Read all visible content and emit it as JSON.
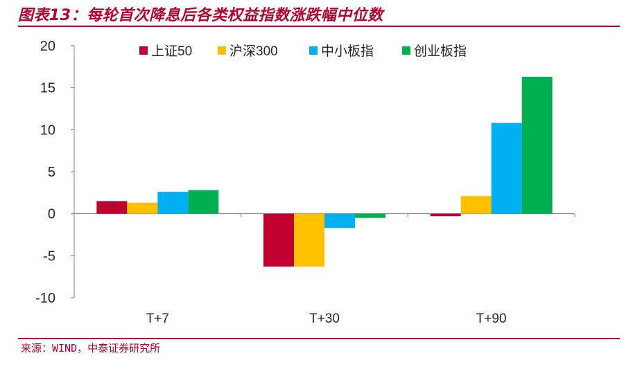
{
  "header": {
    "title": "图表13：每轮首次降息后各类权益指数涨跌幅中位数"
  },
  "footer": {
    "source": "来源：WIND，中泰证券研究所"
  },
  "colors": {
    "brand": "#b3002d",
    "axis": "#808080",
    "text": "#262626"
  },
  "chart_data": {
    "type": "bar",
    "title": "",
    "xlabel": "",
    "ylabel": "",
    "categories": [
      "T+7",
      "T+30",
      "T+90"
    ],
    "ylim": [
      -10,
      20
    ],
    "yticks": [
      -10,
      -5,
      0,
      5,
      10,
      15,
      20
    ],
    "ytick_labels": [
      "-10",
      "-5",
      "0",
      "5",
      "10",
      "15",
      "20"
    ],
    "grid": false,
    "legend_position": "top",
    "series": [
      {
        "name": "上证50",
        "color": "#c00031",
        "values": [
          1.5,
          -6.3,
          -0.3
        ]
      },
      {
        "name": "沪深300",
        "color": "#ffc000",
        "values": [
          1.3,
          -6.3,
          2.1
        ]
      },
      {
        "name": "中小板指",
        "color": "#00b0f0",
        "values": [
          2.6,
          -1.7,
          10.8
        ]
      },
      {
        "name": "创业板指",
        "color": "#00b050",
        "values": [
          2.8,
          -0.5,
          16.3
        ]
      }
    ]
  }
}
